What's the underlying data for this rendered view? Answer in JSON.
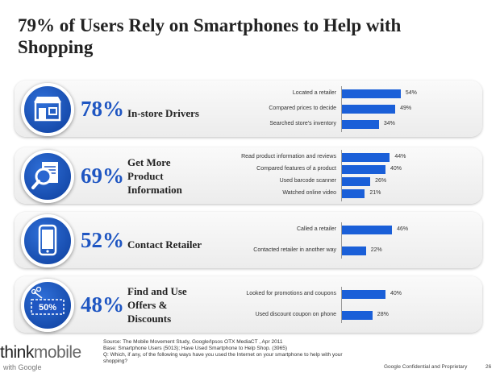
{
  "title": "79% of Users Rely on Smartphones to Help with Shopping",
  "icons": [
    "store-icon",
    "magnifier-document-icon",
    "smartphone-icon",
    "coupon-icon"
  ],
  "coupon_text": "50%",
  "accent": "#1f56c2",
  "bar_color": "#1a5fd8",
  "chart_data": [
    {
      "type": "bar",
      "orientation": "horizontal",
      "percent": "78%",
      "label": "In-store Drivers",
      "categories": [
        "Located a retailer",
        "Compared prices to decide",
        "Searched store's inventory"
      ],
      "values": [
        54,
        49,
        34
      ],
      "value_labels": [
        "54%",
        "49%",
        "34%"
      ]
    },
    {
      "type": "bar",
      "orientation": "horizontal",
      "percent": "69%",
      "label": "Get More Product Information",
      "categories": [
        "Read product information and reviews",
        "Compared features of a product",
        "Used barcode scanner",
        "Watched online video"
      ],
      "values": [
        44,
        40,
        26,
        21
      ],
      "value_labels": [
        "44%",
        "40%",
        "26%",
        "21%"
      ]
    },
    {
      "type": "bar",
      "orientation": "horizontal",
      "percent": "52%",
      "label": "Contact Retailer",
      "categories": [
        "Called a retailer",
        "Contacted retailer in another way"
      ],
      "values": [
        46,
        22
      ],
      "value_labels": [
        "46%",
        "22%"
      ]
    },
    {
      "type": "bar",
      "orientation": "horizontal",
      "percent": "48%",
      "label": "Find and Use Offers & Discounts",
      "categories": [
        "Looked for promotions and coupons",
        "Used discount coupon on phone"
      ],
      "values": [
        40,
        28
      ],
      "value_labels": [
        "40%",
        "28%"
      ]
    }
  ],
  "footer": {
    "source": "Source: The Mobile Movement Study, Google/Ipsos OTX MediaCT , Apr 2011",
    "base": "Base:   Smartphone Users (5013); Have Used Smartphone to Help Shop. (3965)",
    "question": "Q: Which, if any, of the following ways have you used the Internet on your smartphone to help with your shopping?",
    "logo_main": "thinkmobile",
    "logo_sub": "with Google",
    "confidential": "Google Confidential and Proprietary",
    "page": "26"
  }
}
